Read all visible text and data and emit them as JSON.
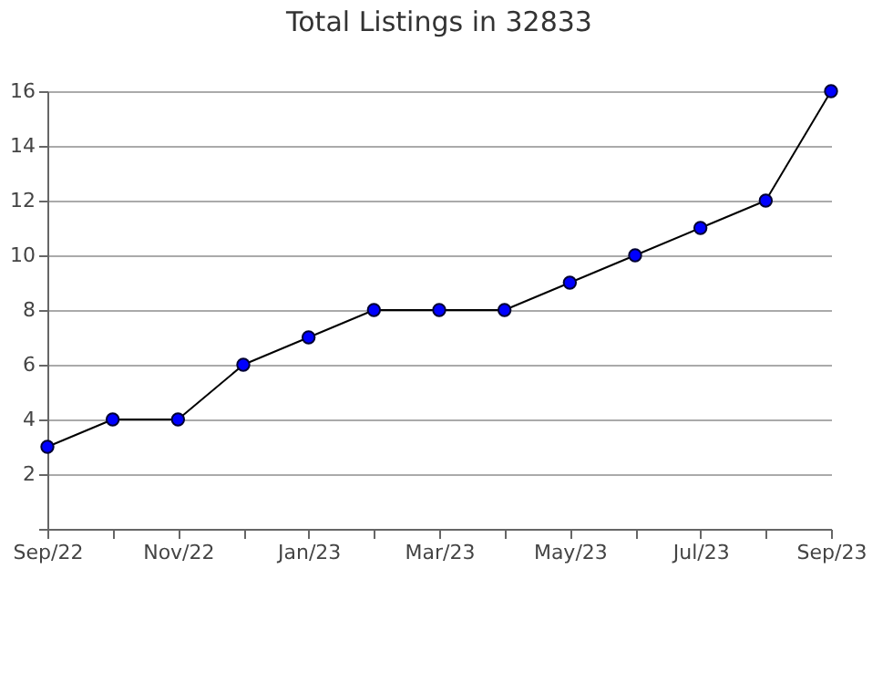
{
  "chart_data": {
    "type": "line",
    "title": "Total Listings in 32833",
    "categories": [
      "Sep/22",
      null,
      "Nov/22",
      null,
      "Jan/23",
      null,
      "Mar/23",
      null,
      "May/23",
      null,
      "Jul/23",
      null,
      "Sep/23"
    ],
    "series": [
      {
        "color": "#0000ff",
        "values": [
          3,
          4,
          4,
          6,
          7,
          8,
          8,
          8,
          9,
          10,
          11,
          12,
          16
        ]
      }
    ],
    "ylim": [
      0,
      16
    ],
    "yticks": [
      {
        "value": 0,
        "label": null
      },
      2,
      4,
      6,
      8,
      10,
      12,
      14,
      16
    ],
    "grid": "y",
    "marker": "circle",
    "line_style": "solid",
    "legend": false
  }
}
